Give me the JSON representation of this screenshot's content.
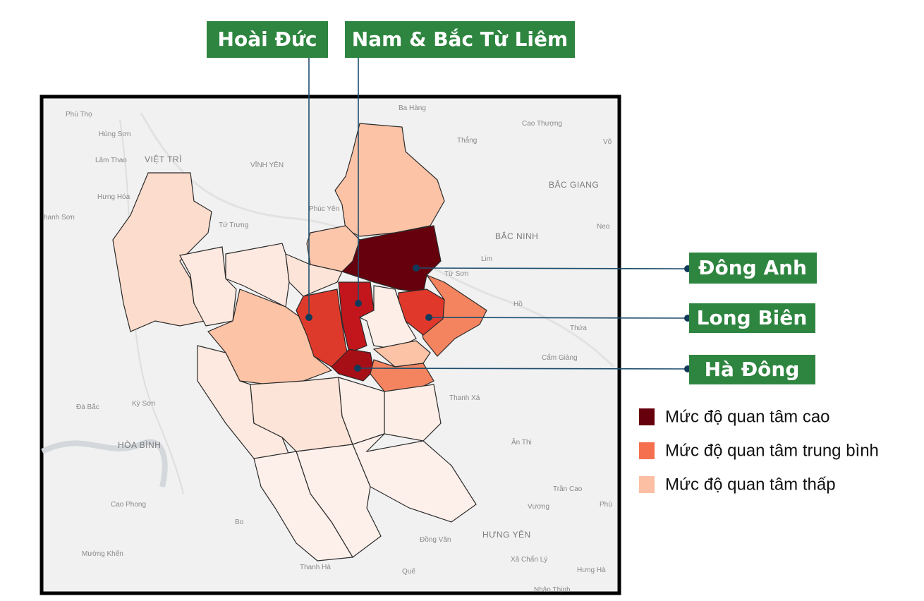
{
  "callouts": [
    {
      "label": "Hoài Đức"
    },
    {
      "label": "Nam & Bắc Từ Liêm"
    },
    {
      "label": "Đông Anh"
    },
    {
      "label": "Long Biên"
    },
    {
      "label": "Hà Đông"
    }
  ],
  "legend": [
    {
      "label": "Mức độ quan tâm cao",
      "color": "#67000d"
    },
    {
      "label": "Mức độ quan tâm trung bình",
      "color": "#f4704f"
    },
    {
      "label": "Mức độ quan tâm thấp",
      "color": "#fcbfa3"
    }
  ],
  "places": [
    "Phú Thọ",
    "Hùng Sơn",
    "Lâm Thao",
    "VIỆT TRÌ",
    "VĨNH YÊN",
    "Hưng Hóa",
    "hanh Sơn",
    "Tứ Trưng",
    "Phúc Yên",
    "Ba Hàng",
    "Cao Thượng",
    "Thắng",
    "Võ",
    "BẮC GIANG",
    "Neo",
    "BẮC NINH",
    "Lim",
    "Từ Sơn",
    "Hồ",
    "Thứa",
    "Cẩm Giàng",
    "Thanh Xá",
    "Ân Thi",
    "Trần Cao",
    "Vương",
    "Phù",
    "HƯNG YÊN",
    "Xã Chẩn Lý",
    "Hưng Hà",
    "Nhân Thịnh",
    "Quế",
    "Đồng Văn",
    "Thanh Hà",
    "Bo",
    "Cao Phong",
    "Mường Khến",
    "HÒA BÌNH",
    "Đà Bắc",
    "Kỳ Sơn"
  ]
}
